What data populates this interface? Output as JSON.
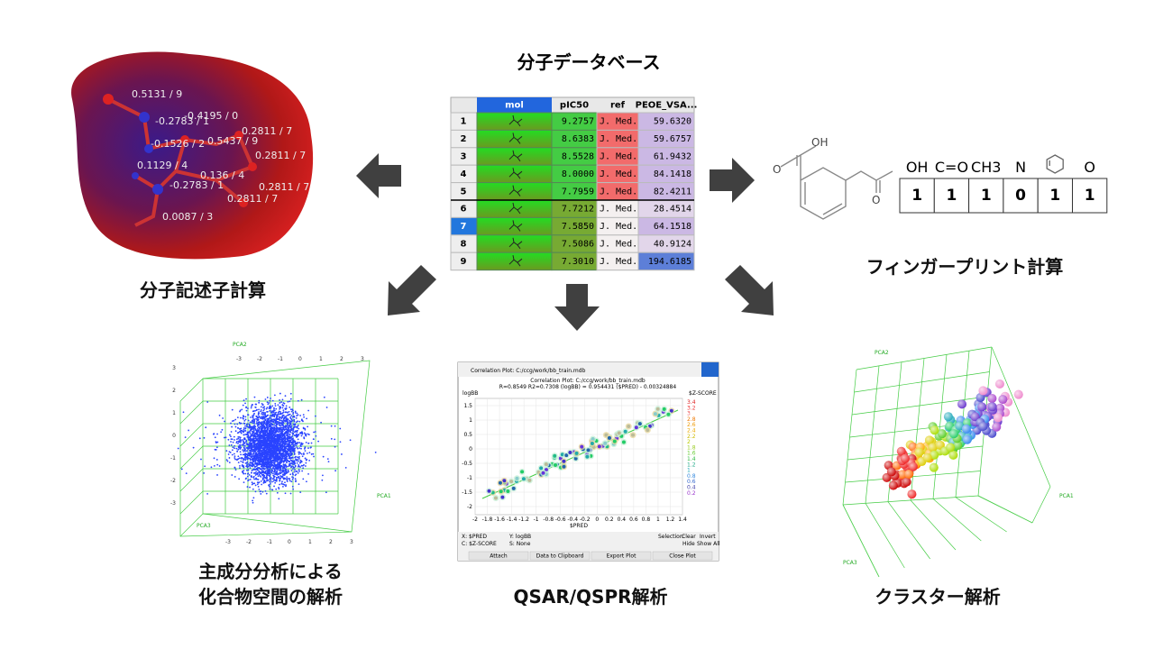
{
  "database": {
    "title": "分子データベース",
    "headers": [
      "mol",
      "pIC50",
      "ref",
      "PEOE_VSA..."
    ],
    "rows": [
      [
        "1",
        "9.2757",
        "J. Med.",
        "59.6320"
      ],
      [
        "2",
        "8.6383",
        "J. Med.",
        "59.6757"
      ],
      [
        "3",
        "8.5528",
        "J. Med.",
        "61.9432"
      ],
      [
        "4",
        "8.0000",
        "J. Med.",
        "84.1418"
      ],
      [
        "5",
        "7.7959",
        "J. Med.",
        "82.4211"
      ],
      [
        "6",
        "7.7212",
        "J. Med.",
        "28.4514"
      ],
      [
        "7",
        "7.5850",
        "J. Med.",
        "64.1518"
      ],
      [
        "8",
        "7.5086",
        "J. Med.",
        "40.9124"
      ],
      [
        "9",
        "7.3010",
        "J. Med.",
        "194.6185"
      ]
    ]
  },
  "descriptor": {
    "caption": "分子記述子計算",
    "labels": [
      "0.5131 / 9",
      "-0.2783 / 1",
      "-0.4195 / 0",
      "0.2811 / 7",
      "-0.1526 / 2",
      "0.5437 / 9",
      "0.2811 / 7",
      "0.1129 / 4",
      "0.136 / 4",
      "-0.2783 / 1",
      "0.2811 / 7",
      "0.2811 / 7",
      "0.0087 / 3"
    ]
  },
  "fingerprint": {
    "caption": "フィンガープリント計算",
    "atoms": [
      "OH",
      "O",
      "O"
    ],
    "bits": [
      {
        "label": "OH",
        "bit": "1"
      },
      {
        "label": "C=O",
        "bit": "1"
      },
      {
        "label": "CH3",
        "bit": "1"
      },
      {
        "label": "N",
        "bit": "0"
      },
      {
        "bit": "1"
      },
      {
        "label": "O",
        "bit": "1"
      }
    ]
  },
  "pca": {
    "caption": [
      "主成分分析による",
      "化合物空間の解析"
    ],
    "axes": [
      "PCA1",
      "PCA2",
      "PCA3"
    ],
    "ticks": [
      "-3",
      "-2",
      "-1",
      "0",
      "1",
      "2",
      "3"
    ]
  },
  "qsar": {
    "caption": "QSAR/QSPR解析",
    "window_title": "Correlation Plot: C:/ccg/work/bb_train.mdb",
    "plot_title": "Correlation Plot: C:/ccg/work/bb_train.mdb",
    "stats": "R=0.8549 R2=0.7308   (logBB) = 0.954431 ($PRED) - 0.00324884",
    "y_label": "logBB",
    "x_label": "$PRED",
    "color_label": "$Z-SCORE",
    "xticks": [
      "-2",
      "-1.8",
      "-1.6",
      "-1.4",
      "-1.2",
      "-1",
      "-0.8",
      "-0.6",
      "-0.4",
      "-0.2",
      "0",
      "0.2",
      "0.4",
      "0.6",
      "0.8",
      "1",
      "1.2",
      "1.4"
    ],
    "yticks": [
      "1.5",
      "1",
      "0.5",
      "0",
      "-0.5",
      "-1",
      "-1.5",
      "-2"
    ],
    "zticks": [
      "3.4",
      "3.2",
      "3",
      "2.8",
      "2.6",
      "2.4",
      "2.2",
      "2",
      "1.8",
      "1.6",
      "1.4",
      "1.2",
      "1",
      "0.8",
      "0.6",
      "0.4",
      "0.2"
    ],
    "controls": [
      "X: $PRED",
      "Y: logBB",
      "C: $Z-SCORE",
      "S: None",
      "Selection:",
      "Clear",
      "Invert",
      "Hide",
      "Show All"
    ],
    "buttons": [
      "Attach",
      "Data to Clipboard",
      "Export Plot",
      "Close Plot"
    ]
  },
  "cluster": {
    "caption": "クラスター解析",
    "axes": [
      "PCA1",
      "PCA2",
      "PCA3"
    ]
  }
}
